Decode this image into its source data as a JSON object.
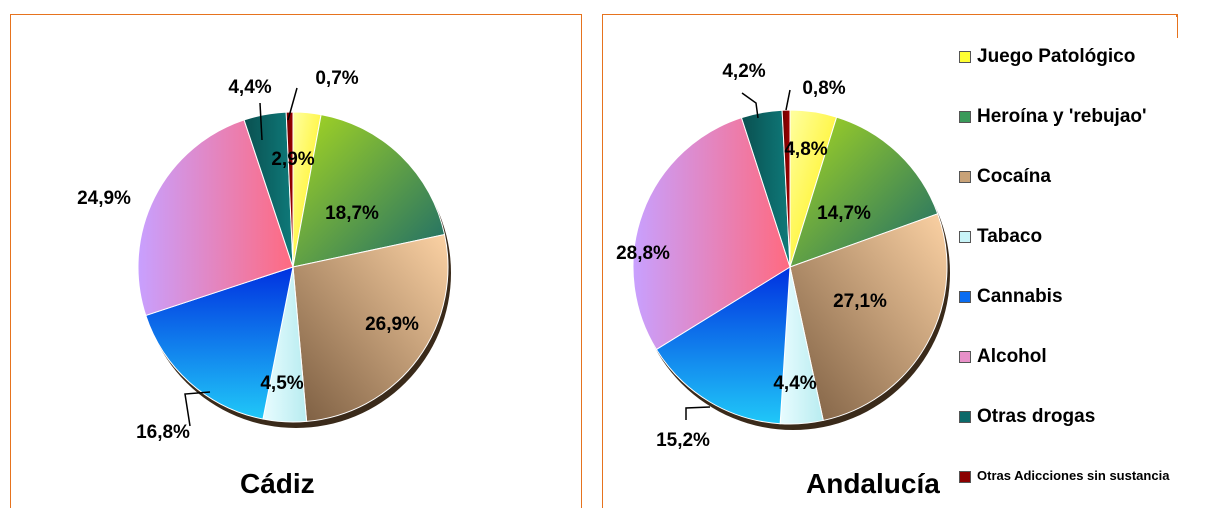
{
  "chart_data": [
    {
      "type": "pie",
      "title": "Cádiz",
      "slices": [
        {
          "label": "Juego Patológico",
          "value": 2.9,
          "display": "2,9%"
        },
        {
          "label": "Heroína y 'rebujao'",
          "value": 18.7,
          "display": "18,7%"
        },
        {
          "label": "Cocaína",
          "value": 26.9,
          "display": "26,9%"
        },
        {
          "label": "Tabaco",
          "value": 4.5,
          "display": "4,5%"
        },
        {
          "label": "Cannabis",
          "value": 16.8,
          "display": "16,8%"
        },
        {
          "label": "Alcohol",
          "value": 24.9,
          "display": "24,9%"
        },
        {
          "label": "Otras drogas",
          "value": 4.4,
          "display": "4,4%"
        },
        {
          "label": "Otras Adicciones sin sustancia",
          "value": 0.7,
          "display": "0,7%"
        }
      ]
    },
    {
      "type": "pie",
      "title": "Andalucía",
      "slices": [
        {
          "label": "Juego Patológico",
          "value": 4.8,
          "display": "4,8%"
        },
        {
          "label": "Heroína y 'rebujao'",
          "value": 14.7,
          "display": "14,7%"
        },
        {
          "label": "Cocaína",
          "value": 27.1,
          "display": "27,1%"
        },
        {
          "label": "Tabaco",
          "value": 4.4,
          "display": "4,4%"
        },
        {
          "label": "Cannabis",
          "value": 15.2,
          "display": "15,2%"
        },
        {
          "label": "Alcohol",
          "value": 28.8,
          "display": "28,8%"
        },
        {
          "label": "Otras drogas",
          "value": 4.2,
          "display": "4,2%"
        },
        {
          "label": "Otras Adicciones sin sustancia",
          "value": 0.8,
          "display": "0,8%"
        }
      ]
    }
  ],
  "legend": [
    {
      "label": "Juego Patológico",
      "color": "#ffff33"
    },
    {
      "label": "Heroína y 'rebujao'",
      "color": "#3a9a5a"
    },
    {
      "label": "Cocaína",
      "color": "#c8a278"
    },
    {
      "label": "Tabaco",
      "color": "#c8f4f8"
    },
    {
      "label": "Cannabis",
      "color": "#0a6cf0"
    },
    {
      "label": "Alcohol",
      "color": "#e890c8"
    },
    {
      "label": "Otras drogas",
      "color": "#0c6a6a"
    },
    {
      "label": "Otras Adicciones sin sustancia",
      "color": "#8b0000"
    }
  ],
  "colors": {
    "border": "#e6731e",
    "juego": "#ffff33",
    "heroina": "#6cc030",
    "cocaina": "#f8c890",
    "tabaco": "#d8f8fc",
    "cannabis": "#1a90ff",
    "alcohol": "#ff7090",
    "otras_drogas": "#0c6a6a",
    "otras_adicciones": "#8b0000"
  }
}
